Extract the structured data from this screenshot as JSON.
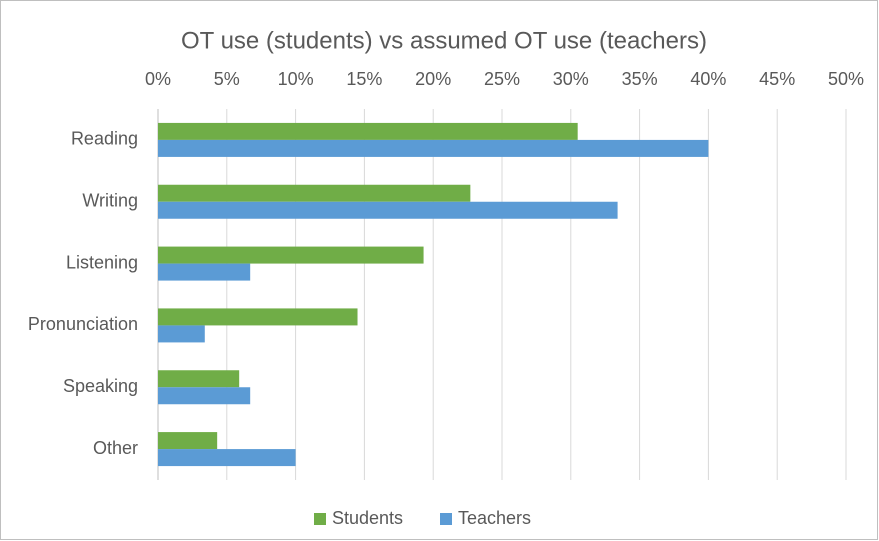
{
  "chart_data": {
    "type": "hbar",
    "title": "OT use (students) vs assumed OT use (teachers)",
    "categories": [
      "Reading",
      "Writing",
      "Listening",
      "Pronunciation",
      "Speaking",
      "Other"
    ],
    "series": [
      {
        "name": "Students",
        "color": "#70ad47",
        "values": [
          30.5,
          22.7,
          19.3,
          14.5,
          5.9,
          4.3
        ]
      },
      {
        "name": "Teachers",
        "color": "#5b9bd5",
        "values": [
          40.0,
          33.4,
          6.7,
          3.4,
          6.7,
          10.0
        ]
      }
    ],
    "xlim": [
      0,
      50
    ],
    "xticks": [
      {
        "value": 0,
        "label": "0%"
      },
      {
        "value": 5,
        "label": "5%"
      },
      {
        "value": 10,
        "label": "10%"
      },
      {
        "value": 15,
        "label": "15%"
      },
      {
        "value": 20,
        "label": "20%"
      },
      {
        "value": 25,
        "label": "25%"
      },
      {
        "value": 30,
        "label": "30%"
      },
      {
        "value": 35,
        "label": "35%"
      },
      {
        "value": 40,
        "label": "40%"
      },
      {
        "value": 45,
        "label": "45%"
      },
      {
        "value": 50,
        "label": "50%"
      }
    ],
    "grid": true,
    "legend": "bottom"
  }
}
